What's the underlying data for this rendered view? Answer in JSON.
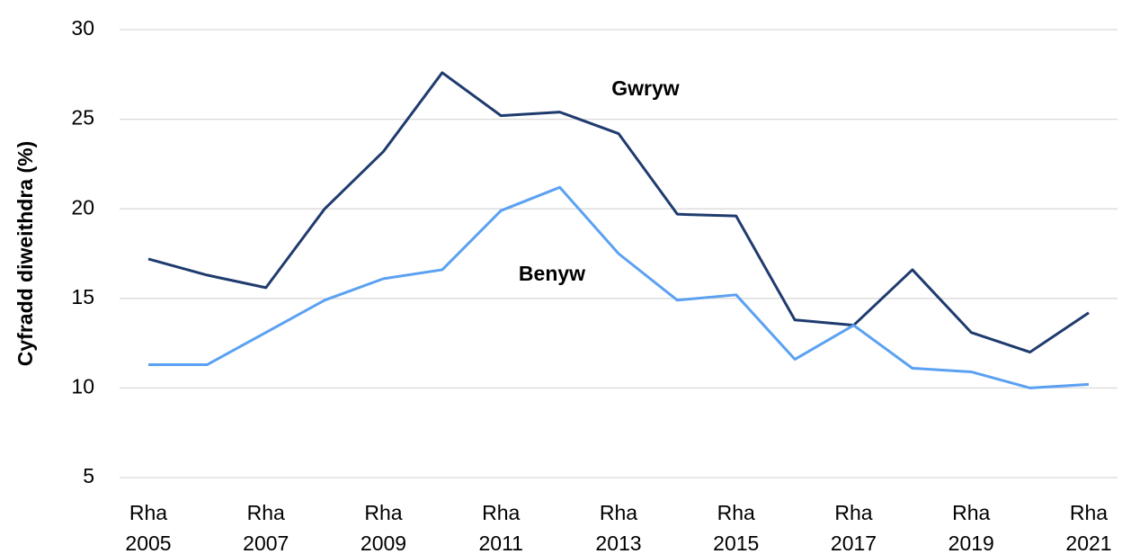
{
  "chart_data": {
    "type": "line",
    "y_label": "Cyfradd diweithdra (%)",
    "categories": [
      "Rha 2005",
      null,
      "Rha 2007",
      null,
      "Rha 2009",
      null,
      "Rha 2011",
      null,
      "Rha 2013",
      null,
      "Rha 2015",
      null,
      "Rha 2017",
      null,
      "Rha 2019",
      null,
      "Rha 2021"
    ],
    "series": [
      {
        "name": "Gwryw",
        "color": "#1f3b6e",
        "values": [
          17.2,
          16.3,
          15.6,
          20.0,
          23.2,
          27.6,
          25.2,
          25.4,
          24.2,
          19.7,
          19.6,
          13.8,
          13.5,
          16.6,
          13.1,
          12.0,
          14.2
        ]
      },
      {
        "name": "Benyw",
        "color": "#5ba1f2",
        "values": [
          11.3,
          11.3,
          13.1,
          14.9,
          16.1,
          16.6,
          19.9,
          21.2,
          17.5,
          14.9,
          15.2,
          11.6,
          13.5,
          11.1,
          10.9,
          10.0,
          10.2
        ]
      }
    ],
    "ylim": [
      5,
      30
    ],
    "yticks": [
      5,
      10,
      15,
      20,
      25,
      30
    ],
    "grid": true
  }
}
